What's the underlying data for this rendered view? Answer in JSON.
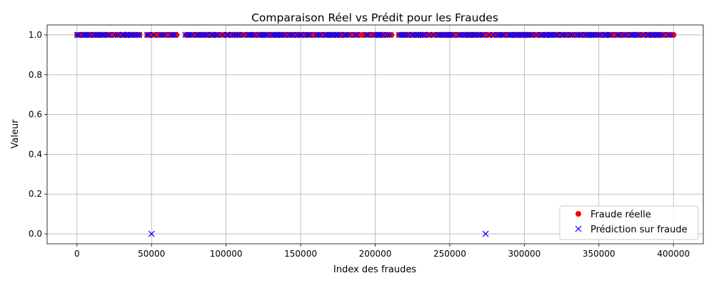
{
  "chart_data": {
    "type": "scatter",
    "title": "Comparaison Réel vs Prédit pour les Fraudes",
    "xlabel": "Index des fraudes",
    "ylabel": "Valeur",
    "xlim": [
      -20000,
      420000
    ],
    "ylim": [
      -0.05,
      1.05
    ],
    "xticks": [
      0,
      50000,
      100000,
      150000,
      200000,
      250000,
      300000,
      350000,
      400000
    ],
    "xtick_labels": [
      "0",
      "50000",
      "100000",
      "150000",
      "200000",
      "250000",
      "300000",
      "350000",
      "400000"
    ],
    "yticks": [
      0.0,
      0.2,
      0.4,
      0.6,
      0.8,
      1.0
    ],
    "ytick_labels": [
      "0.0",
      "0.2",
      "0.4",
      "0.6",
      "0.8",
      "1.0"
    ],
    "grid": true,
    "legend_position": "lower-right",
    "series": [
      {
        "name": "Fraude réelle",
        "marker": "circle",
        "color": "#ff0000",
        "x_ranges_at_y1": [
          [
            0,
            43000
          ],
          [
            47000,
            68000
          ],
          [
            73000,
            212000
          ],
          [
            216000,
            401000
          ]
        ],
        "points": []
      },
      {
        "name": "Prédiction sur fraude",
        "marker": "x",
        "color": "#0000ff",
        "x_ranges_at_y1": [
          [
            0,
            43000
          ],
          [
            47000,
            68000
          ],
          [
            73000,
            212000
          ],
          [
            216000,
            401000
          ]
        ],
        "points": [
          {
            "x": 50000,
            "y": 0.0
          },
          {
            "x": 274000,
            "y": 0.0
          }
        ]
      }
    ]
  }
}
